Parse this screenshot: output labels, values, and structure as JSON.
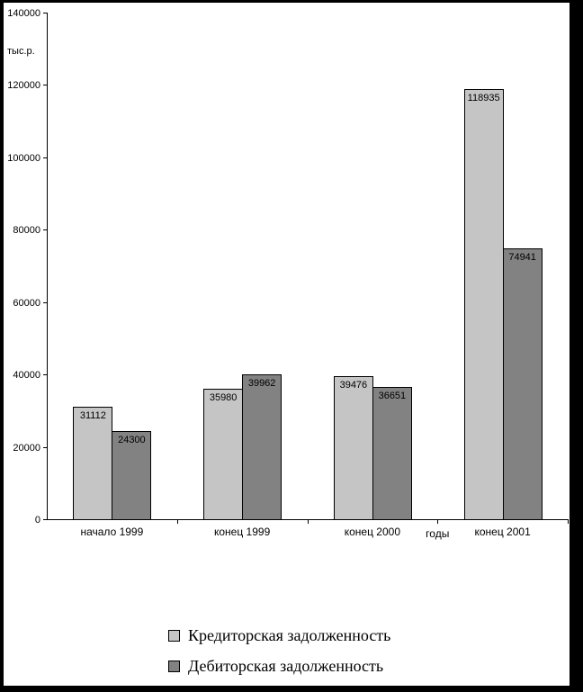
{
  "frame_color": "#000000",
  "background_color": "#ffffff",
  "chart_data": {
    "type": "bar",
    "title": "",
    "ylabel": "тыс.р.",
    "xlabel": "годы",
    "categories": [
      "начало 1999",
      "конец 1999",
      "конец 2000",
      "конец 2001"
    ],
    "series": [
      {
        "name": "Кредиторская задолженность",
        "color": "#c5c5c5",
        "values": [
          31112,
          35980,
          39476,
          118935
        ]
      },
      {
        "name": "Дебиторская задолженность",
        "color": "#828282",
        "values": [
          24300,
          39962,
          36651,
          74941
        ]
      }
    ],
    "ylim": [
      0,
      140000
    ],
    "ytick_step": 20000,
    "ytick_labels": [
      "0",
      "20000",
      "40000",
      "60000",
      "80000",
      "100000",
      "120000",
      "140000"
    ],
    "data_labels": true,
    "grid": false,
    "legend_position": "bottom",
    "axis_color": "#000000",
    "label_color": "#000000"
  }
}
